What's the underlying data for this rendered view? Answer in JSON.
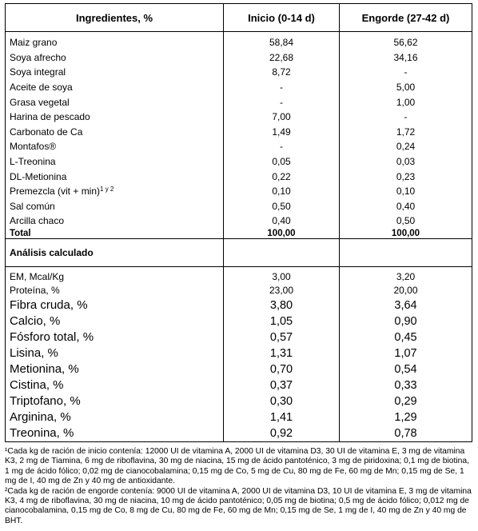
{
  "headers": {
    "ingredient": "Ingredientes, %",
    "inicio": "Inicio (0-14 d)",
    "engorde": "Engorde (27-42 d)"
  },
  "ingredients": [
    {
      "name": "Maiz grano",
      "inicio": "58,84",
      "engorde": "56,62"
    },
    {
      "name": "Soya afrecho",
      "inicio": "22,68",
      "engorde": "34,16"
    },
    {
      "name": "Soya integral",
      "inicio": "8,72",
      "engorde": "-"
    },
    {
      "name": "Aceite de soya",
      "inicio": "-",
      "engorde": "5,00"
    },
    {
      "name": "Grasa vegetal",
      "inicio": "-",
      "engorde": "1,00"
    },
    {
      "name": "Harina de pescado",
      "inicio": "7,00",
      "engorde": "-"
    },
    {
      "name": "Carbonato de Ca",
      "inicio": "1,49",
      "engorde": "1,72"
    },
    {
      "name": "Montafos®",
      "inicio": "-",
      "engorde": "0,24"
    },
    {
      "name": "L-Treonina",
      "inicio": "0,05",
      "engorde": "0,03"
    },
    {
      "name": "DL-Metionina",
      "inicio": "0,22",
      "engorde": "0,23"
    },
    {
      "name": "Premezcla (vit + min)",
      "sup": "1 y 2",
      "inicio": "0,10",
      "engorde": "0,10"
    },
    {
      "name": "Sal común",
      "inicio": "0,50",
      "engorde": "0,40"
    },
    {
      "name": "Arcilla chaco",
      "inicio": "0,40",
      "engorde": "0,50"
    }
  ],
  "total": {
    "label": "Total",
    "inicio": "100,00",
    "engorde": "100,00"
  },
  "analysis_title": "Análisis calculado",
  "analysis": [
    {
      "name": "EM, Mcal/Kg",
      "inicio": "3,00",
      "engorde": "3,20",
      "size": "m"
    },
    {
      "name": "Proteína, %",
      "inicio": "23,00",
      "engorde": "20,00",
      "size": "m"
    },
    {
      "name": "Fibra cruda, %",
      "inicio": "3,80",
      "engorde": "3,64",
      "size": "b"
    },
    {
      "name": "Calcio, %",
      "inicio": "1,05",
      "engorde": "0,90",
      "size": "b"
    },
    {
      "name": "Fósforo total, %",
      "inicio": "0,57",
      "engorde": "0,45",
      "size": "b"
    },
    {
      "name": "Lisina, %",
      "inicio": "1,31",
      "engorde": "1,07",
      "size": "b"
    },
    {
      "name": "Metionina, %",
      "inicio": "0,70",
      "engorde": "0,54",
      "size": "b"
    },
    {
      "name": "Cistina, %",
      "inicio": "0,37",
      "engorde": "0,33",
      "size": "b"
    },
    {
      "name": "Triptofano, %",
      "inicio": "0,30",
      "engorde": "0,29",
      "size": "b"
    },
    {
      "name": "Arginina, %",
      "inicio": "1,41",
      "engorde": "1,29",
      "size": "b"
    },
    {
      "name": "Treonina, %",
      "inicio": "0,92",
      "engorde": "0,78",
      "size": "b"
    }
  ],
  "footnotes": [
    "¹Cada kg de ración de inicio contenía: 12000 UI de vitamina A, 2000 UI de vitamina D3, 30 UI de vitamina E, 3 mg de vitamina K3, 2 mg de Tiamina, 6 mg de riboflavina, 30 mg de niacina, 15 mg de ácido pantoténico, 3 mg de piridoxina; 0,1 mg de biotina, 1 mg de ácido fólico; 0,02 mg de cianocobalamina; 0,15 mg de Co, 5 mg de Cu, 80 mg de Fe, 60 mg de Mn; 0,15 mg de Se, 1 mg de I, 40 mg de Zn y 40 mg de antioxidante.",
    "²Cada kg de ración de engorde contenía: 9000 UI de vitamina A, 2000 UI de vitamina D3, 10 UI de vitamina E, 3 mg de vitamina K3, 4 mg de riboflavina, 30 mg de niacina, 10 mg de ácido pantoténico; 0,05 mg de biotina; 0,5 mg de ácido fólico; 0,012 mg de cianocobalamina, 0,15 mg de Co, 8 mg de Cu, 80 mg de Fe, 60 mg de Mn; 0,15 mg de Se, 1 mg de I, 40 mg de Zn y 40 mg de BHT."
  ]
}
